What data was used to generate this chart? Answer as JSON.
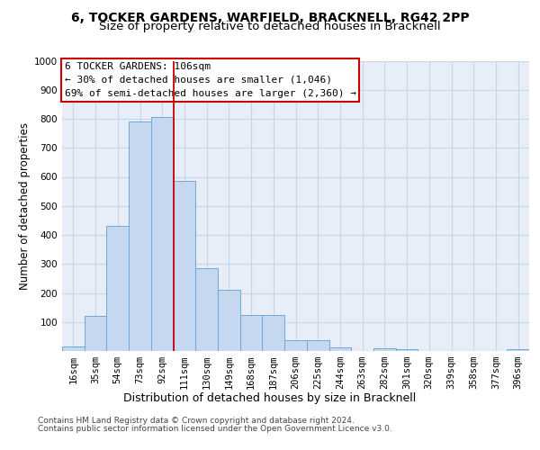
{
  "title_line1": "6, TOCKER GARDENS, WARFIELD, BRACKNELL, RG42 2PP",
  "title_line2": "Size of property relative to detached houses in Bracknell",
  "xlabel": "Distribution of detached houses by size in Bracknell",
  "ylabel": "Number of detached properties",
  "footer_line1": "Contains HM Land Registry data © Crown copyright and database right 2024.",
  "footer_line2": "Contains public sector information licensed under the Open Government Licence v3.0.",
  "annotation_title": "6 TOCKER GARDENS: 106sqm",
  "annotation_line1": "← 30% of detached houses are smaller (1,046)",
  "annotation_line2": "69% of semi-detached houses are larger (2,360) →",
  "bar_labels": [
    "16sqm",
    "35sqm",
    "54sqm",
    "73sqm",
    "92sqm",
    "111sqm",
    "130sqm",
    "149sqm",
    "168sqm",
    "187sqm",
    "206sqm",
    "225sqm",
    "244sqm",
    "263sqm",
    "282sqm",
    "301sqm",
    "320sqm",
    "339sqm",
    "358sqm",
    "377sqm",
    "396sqm"
  ],
  "bar_values": [
    15,
    120,
    430,
    790,
    805,
    585,
    285,
    210,
    125,
    125,
    38,
    38,
    12,
    0,
    10,
    5,
    0,
    0,
    0,
    0,
    5
  ],
  "bar_color": "#c5d8ef",
  "bar_edge_color": "#6aaad4",
  "vline_color": "#cc0000",
  "annotation_box_color": "#cc0000",
  "annotation_box_fill": "#ffffff",
  "ylim": [
    0,
    1000
  ],
  "yticks": [
    0,
    100,
    200,
    300,
    400,
    500,
    600,
    700,
    800,
    900,
    1000
  ],
  "grid_color": "#c8d4e8",
  "background_color": "#e8eef8",
  "title_fontsize": 10,
  "subtitle_fontsize": 9.5,
  "ylabel_fontsize": 8.5,
  "xlabel_fontsize": 9,
  "tick_fontsize": 7.5,
  "annotation_fontsize": 8,
  "footer_fontsize": 6.5
}
